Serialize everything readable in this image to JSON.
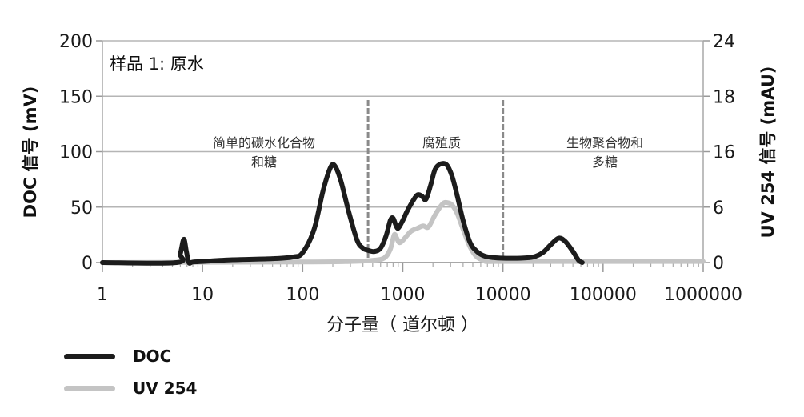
{
  "chart_data": {
    "type": "line",
    "title": "样品 1: 原水",
    "xlabel": "分子量（ 道尔顿 ）",
    "ylabel": "DOC 信号 (mV)",
    "y2label": "UV 254 信号 (mAU)",
    "xscale": "log",
    "xlim": [
      1,
      1000000
    ],
    "ylim": [
      0,
      200
    ],
    "x_ticks": [
      "1",
      "10",
      "100",
      "1000",
      "10000",
      "100000",
      "1000000"
    ],
    "y_ticks": [
      "0",
      "50",
      "100",
      "150",
      "200"
    ],
    "y2_ticks": [
      "0",
      "6",
      "16",
      "18",
      "24"
    ],
    "grid": true,
    "region_dividers": [
      450,
      10000
    ],
    "regions": [
      {
        "label_line1": "简单的碳水化合物",
        "label_line2": "和糖"
      },
      {
        "label_line1": "腐殖质",
        "label_line2": ""
      },
      {
        "label_line1": "生物聚合物和",
        "label_line2": "多糖"
      }
    ],
    "series": [
      {
        "name": "DOC",
        "color": "#1c1c1c",
        "x": [
          1,
          5.5,
          6.0,
          6.5,
          6.9,
          7.3,
          8,
          10,
          20,
          50,
          80,
          100,
          130,
          160,
          190,
          210,
          240,
          290,
          350,
          400,
          450,
          520,
          600,
          680,
          750,
          800,
          850,
          900,
          1000,
          1100,
          1250,
          1400,
          1550,
          1700,
          1900,
          2100,
          2400,
          2750,
          3100,
          3500,
          4000,
          4700,
          5500,
          6500,
          8000,
          10000,
          15000,
          20000,
          25000,
          30000,
          36000,
          42000,
          50000,
          57000,
          62000
        ],
        "values": [
          0,
          0,
          8,
          21,
          10,
          0,
          0.5,
          1,
          2.5,
          3.5,
          5,
          9,
          30,
          65,
          86,
          87,
          74,
          45,
          20,
          13,
          11,
          10,
          13,
          24,
          38,
          40,
          34,
          31,
          38,
          46,
          55,
          61,
          60,
          57,
          70,
          84,
          89,
          88,
          78,
          60,
          38,
          18,
          10,
          6,
          4.5,
          4,
          4,
          5,
          9,
          16,
          22,
          19,
          10,
          2,
          0
        ]
      },
      {
        "name": "UV 254",
        "color": "#c4c4c4",
        "x": [
          1,
          100,
          300,
          500,
          650,
          750,
          820,
          870,
          920,
          1000,
          1200,
          1400,
          1600,
          1800,
          2100,
          2500,
          2800,
          3100,
          3500,
          4000,
          4700,
          5500,
          6500,
          8000,
          10000,
          1000000
        ],
        "values": [
          0,
          0.5,
          1,
          2,
          4,
          12,
          25,
          22,
          18,
          20,
          28,
          31,
          33,
          32,
          43,
          53,
          54,
          52,
          44,
          30,
          14,
          5,
          2,
          1,
          1,
          1
        ]
      }
    ],
    "legend_position": "bottom-left"
  },
  "legend": {
    "items": [
      {
        "label": "DOC",
        "color": "#1c1c1c"
      },
      {
        "label": "UV 254",
        "color": "#c4c4c4"
      }
    ]
  }
}
